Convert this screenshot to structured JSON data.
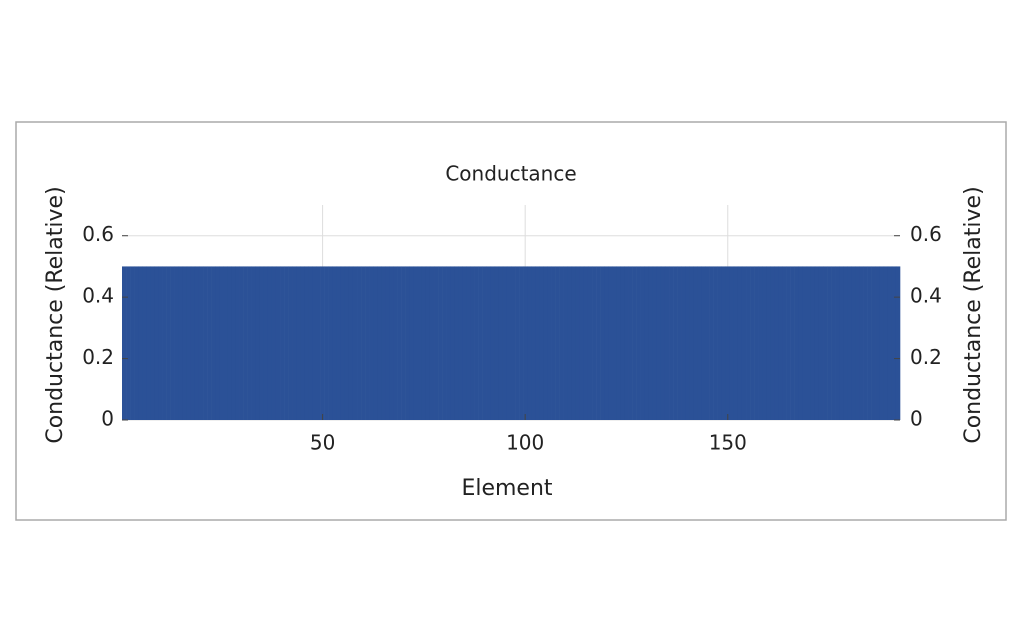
{
  "chart_data": {
    "type": "bar",
    "title": "Conductance",
    "xlabel": "Element",
    "ylabel": "Conductance (Relative)",
    "y2label": "Conductance (Relative)",
    "x": [
      1,
      2,
      3,
      4,
      5,
      6,
      7,
      8,
      9,
      10,
      11,
      12,
      13,
      14,
      15,
      16,
      17,
      18,
      19,
      20,
      21,
      22,
      23,
      24,
      25,
      26,
      27,
      28,
      29,
      30,
      31,
      32,
      33,
      34,
      35,
      36,
      37,
      38,
      39,
      40,
      41,
      42,
      43,
      44,
      45,
      46,
      47,
      48,
      49,
      50,
      51,
      52,
      53,
      54,
      55,
      56,
      57,
      58,
      59,
      60,
      61,
      62,
      63,
      64,
      65,
      66,
      67,
      68,
      69,
      70,
      71,
      72,
      73,
      74,
      75,
      76,
      77,
      78,
      79,
      80,
      81,
      82,
      83,
      84,
      85,
      86,
      87,
      88,
      89,
      90,
      91,
      92,
      93,
      94,
      95,
      96,
      97,
      98,
      99,
      100,
      101,
      102,
      103,
      104,
      105,
      106,
      107,
      108,
      109,
      110,
      111,
      112,
      113,
      114,
      115,
      116,
      117,
      118,
      119,
      120,
      121,
      122,
      123,
      124,
      125,
      126,
      127,
      128,
      129,
      130,
      131,
      132,
      133,
      134,
      135,
      136,
      137,
      138,
      139,
      140,
      141,
      142,
      143,
      144,
      145,
      146,
      147,
      148,
      149,
      150,
      151,
      152,
      153,
      154,
      155,
      156,
      157,
      158,
      159,
      160,
      161,
      162,
      163,
      164,
      165,
      166,
      167,
      168,
      169,
      170,
      171,
      172,
      173,
      174,
      175,
      176,
      177,
      178,
      179,
      180,
      181,
      182,
      183,
      184,
      185,
      186,
      187,
      188,
      189,
      190,
      191,
      192
    ],
    "values": [
      0.5,
      0.5,
      0.5,
      0.5,
      0.5,
      0.5,
      0.5,
      0.5,
      0.5,
      0.5,
      0.5,
      0.5,
      0.5,
      0.5,
      0.5,
      0.5,
      0.5,
      0.5,
      0.5,
      0.5,
      0.5,
      0.5,
      0.5,
      0.5,
      0.5,
      0.5,
      0.5,
      0.5,
      0.5,
      0.5,
      0.5,
      0.5,
      0.5,
      0.5,
      0.5,
      0.5,
      0.5,
      0.5,
      0.5,
      0.5,
      0.5,
      0.5,
      0.5,
      0.5,
      0.5,
      0.5,
      0.5,
      0.5,
      0.5,
      0.5,
      0.5,
      0.5,
      0.5,
      0.5,
      0.5,
      0.5,
      0.5,
      0.5,
      0.5,
      0.5,
      0.5,
      0.5,
      0.5,
      0.5,
      0.5,
      0.5,
      0.5,
      0.5,
      0.5,
      0.5,
      0.5,
      0.5,
      0.5,
      0.5,
      0.5,
      0.5,
      0.5,
      0.5,
      0.5,
      0.5,
      0.5,
      0.5,
      0.5,
      0.5,
      0.5,
      0.5,
      0.5,
      0.5,
      0.5,
      0.5,
      0.5,
      0.5,
      0.5,
      0.5,
      0.5,
      0.5,
      0.5,
      0.5,
      0.5,
      0.5,
      0.5,
      0.5,
      0.5,
      0.5,
      0.5,
      0.5,
      0.5,
      0.5,
      0.5,
      0.5,
      0.5,
      0.5,
      0.5,
      0.5,
      0.5,
      0.5,
      0.5,
      0.5,
      0.5,
      0.5,
      0.5,
      0.5,
      0.5,
      0.5,
      0.5,
      0.5,
      0.5,
      0.5,
      0.5,
      0.5,
      0.5,
      0.5,
      0.5,
      0.5,
      0.5,
      0.5,
      0.5,
      0.5,
      0.5,
      0.5,
      0.5,
      0.5,
      0.5,
      0.5,
      0.5,
      0.5,
      0.5,
      0.5,
      0.5,
      0.5,
      0.5,
      0.5,
      0.5,
      0.5,
      0.5,
      0.5,
      0.5,
      0.5,
      0.5,
      0.5,
      0.5,
      0.5,
      0.5,
      0.5,
      0.5,
      0.5,
      0.5,
      0.5,
      0.5,
      0.5,
      0.5,
      0.5,
      0.5,
      0.5,
      0.5,
      0.5,
      0.5,
      0.5,
      0.5,
      0.5,
      0.5,
      0.5,
      0.5,
      0.5,
      0.5,
      0.5,
      0.5,
      0.5,
      0.5,
      0.5,
      0.5,
      0.5
    ],
    "color": "#2b5197",
    "xlim": [
      0.5,
      192.5
    ],
    "xticks": [
      50,
      100,
      150
    ],
    "ylim": [
      0,
      0.7
    ],
    "yticks": [
      0,
      0.2,
      0.4,
      0.6
    ],
    "y2lim": [
      0,
      0.7
    ],
    "y2ticks": [
      0,
      0.2,
      0.4,
      0.6
    ],
    "grid": true
  }
}
